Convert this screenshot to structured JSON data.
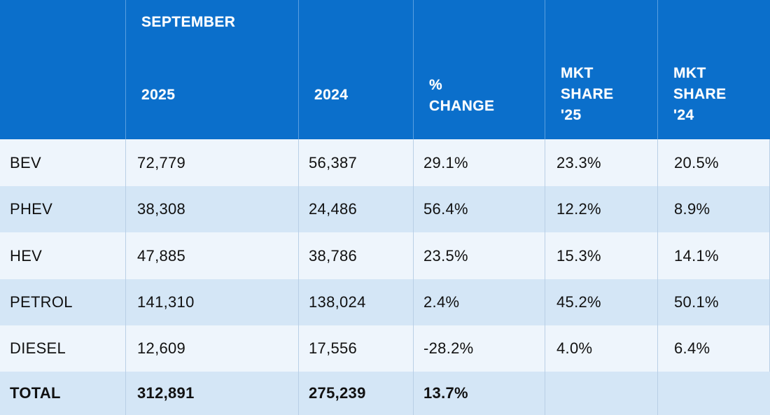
{
  "header": {
    "month": "SEPTEMBER",
    "col_2025": "2025",
    "col_2024": "2024",
    "pct_change": [
      "%",
      "CHANGE"
    ],
    "mkt_share_25": [
      "MKT",
      "SHARE",
      "'25"
    ],
    "mkt_share_24": [
      "MKT",
      "SHARE",
      "'24"
    ]
  },
  "rows": [
    {
      "type": "BEV",
      "v2025": "72,779",
      "v2024": "56,387",
      "change": "29.1%",
      "share25": "23.3%",
      "share24": "20.5%"
    },
    {
      "type": "PHEV",
      "v2025": "38,308",
      "v2024": "24,486",
      "change": "56.4%",
      "share25": "12.2%",
      "share24": "8.9%"
    },
    {
      "type": "HEV",
      "v2025": "47,885",
      "v2024": "38,786",
      "change": "23.5%",
      "share25": "15.3%",
      "share24": "14.1%"
    },
    {
      "type": "PETROL",
      "v2025": "141,310",
      "v2024": "138,024",
      "change": "2.4%",
      "share25": "45.2%",
      "share24": "50.1%"
    },
    {
      "type": "DIESEL",
      "v2025": "12,609",
      "v2024": "17,556",
      "change": "-28.2%",
      "share25": "4.0%",
      "share24": "6.4%"
    }
  ],
  "total": {
    "type": "TOTAL",
    "v2025": "312,891",
    "v2024": "275,239",
    "change": "13.7%",
    "share25": "",
    "share24": ""
  },
  "colors": {
    "header_bg": "#0b6fcb",
    "row_light": "#eef5fc",
    "row_dark": "#d4e6f6"
  }
}
